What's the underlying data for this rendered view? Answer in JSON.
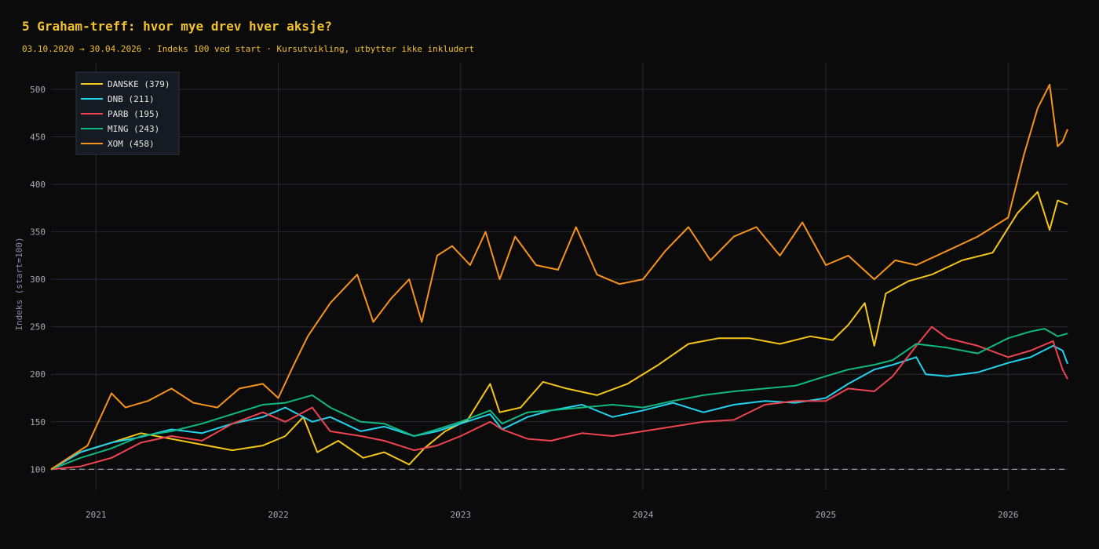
{
  "chart_data": {
    "type": "line",
    "title": "5 Graham-treff: hvor mye drev hver aksje?",
    "subtitle": "03.10.2020 → 30.04.2026 · Indeks 100 ved start · Kursutvikling, utbytter ikke inkludert",
    "ylabel": "Indeks (start=100)",
    "xlabel": "",
    "xlim": [
      "2020-10-03",
      "2026-04-30"
    ],
    "ylim": [
      78,
      528
    ],
    "xticks": [
      "2021",
      "2022",
      "2023",
      "2024",
      "2025",
      "2026"
    ],
    "yticks": [
      100,
      150,
      200,
      250,
      300,
      350,
      400,
      450,
      500
    ],
    "grid": true,
    "legend_position": "top-left",
    "reference_line": 100,
    "series": [
      {
        "name": "DANSKE",
        "legend": "DANSKE  (379)",
        "color": "#f5c518",
        "x": [
          "2020-10-03",
          "2020-12-01",
          "2021-02-01",
          "2021-04-01",
          "2021-06-01",
          "2021-08-01",
          "2021-10-01",
          "2021-12-01",
          "2022-01-15",
          "2022-02-20",
          "2022-03-20",
          "2022-05-01",
          "2022-06-20",
          "2022-08-01",
          "2022-09-20",
          "2022-10-20",
          "2022-12-01",
          "2023-01-15",
          "2023-03-01",
          "2023-03-20",
          "2023-05-01",
          "2023-06-15",
          "2023-08-01",
          "2023-10-01",
          "2023-12-01",
          "2024-02-01",
          "2024-04-01",
          "2024-06-01",
          "2024-08-01",
          "2024-10-01",
          "2024-12-01",
          "2025-01-15",
          "2025-02-15",
          "2025-03-20",
          "2025-04-08",
          "2025-05-01",
          "2025-06-15",
          "2025-08-01",
          "2025-10-01",
          "2025-12-01",
          "2026-01-20",
          "2026-03-01",
          "2026-03-25",
          "2026-04-10",
          "2026-04-30"
        ],
        "values": [
          100,
          118,
          128,
          138,
          132,
          126,
          120,
          125,
          135,
          155,
          118,
          130,
          112,
          118,
          105,
          122,
          140,
          152,
          190,
          160,
          165,
          192,
          185,
          178,
          190,
          210,
          232,
          238,
          238,
          232,
          240,
          236,
          252,
          275,
          230,
          285,
          298,
          305,
          320,
          328,
          370,
          392,
          352,
          383,
          379
        ]
      },
      {
        "name": "DNB",
        "legend": "DNB  (211)",
        "color": "#22d3ee",
        "x": [
          "2020-10-03",
          "2020-12-01",
          "2021-02-01",
          "2021-04-01",
          "2021-06-01",
          "2021-08-01",
          "2021-10-01",
          "2021-12-01",
          "2022-01-15",
          "2022-03-10",
          "2022-04-15",
          "2022-06-15",
          "2022-08-01",
          "2022-09-30",
          "2022-11-15",
          "2023-01-01",
          "2023-03-01",
          "2023-03-25",
          "2023-05-15",
          "2023-07-01",
          "2023-09-01",
          "2023-11-01",
          "2024-01-01",
          "2024-03-01",
          "2024-05-01",
          "2024-07-01",
          "2024-09-01",
          "2024-11-01",
          "2025-01-01",
          "2025-02-15",
          "2025-04-08",
          "2025-05-15",
          "2025-07-01",
          "2025-07-20",
          "2025-09-01",
          "2025-11-01",
          "2026-01-01",
          "2026-02-15",
          "2026-04-01",
          "2026-04-20",
          "2026-04-30"
        ],
        "values": [
          100,
          118,
          128,
          134,
          142,
          138,
          148,
          155,
          165,
          150,
          155,
          140,
          145,
          135,
          140,
          148,
          158,
          142,
          155,
          162,
          168,
          155,
          162,
          170,
          160,
          168,
          172,
          170,
          175,
          190,
          205,
          210,
          218,
          200,
          198,
          202,
          212,
          218,
          230,
          225,
          211
        ]
      },
      {
        "name": "PARB",
        "legend": "PARB  (195)",
        "color": "#ef4450",
        "x": [
          "2020-10-03",
          "2020-12-01",
          "2021-02-01",
          "2021-04-01",
          "2021-06-01",
          "2021-08-01",
          "2021-10-01",
          "2021-12-01",
          "2022-01-15",
          "2022-03-10",
          "2022-04-15",
          "2022-06-15",
          "2022-08-01",
          "2022-09-30",
          "2022-11-15",
          "2023-01-01",
          "2023-03-01",
          "2023-03-25",
          "2023-05-15",
          "2023-07-01",
          "2023-09-01",
          "2023-11-01",
          "2024-01-01",
          "2024-03-01",
          "2024-05-01",
          "2024-07-01",
          "2024-09-01",
          "2024-11-01",
          "2025-01-01",
          "2025-02-15",
          "2025-04-08",
          "2025-05-15",
          "2025-07-01",
          "2025-08-01",
          "2025-09-01",
          "2025-11-01",
          "2026-01-01",
          "2026-02-15",
          "2026-04-01",
          "2026-04-20",
          "2026-04-30"
        ],
        "values": [
          100,
          103,
          112,
          128,
          135,
          130,
          148,
          160,
          150,
          165,
          140,
          135,
          130,
          120,
          125,
          135,
          150,
          142,
          132,
          130,
          138,
          135,
          140,
          145,
          150,
          152,
          168,
          172,
          172,
          185,
          182,
          198,
          230,
          250,
          238,
          230,
          218,
          225,
          235,
          205,
          195
        ]
      },
      {
        "name": "MING",
        "legend": "MING  (243)",
        "color": "#10b981",
        "x": [
          "2020-10-03",
          "2020-12-01",
          "2021-02-01",
          "2021-04-01",
          "2021-06-01",
          "2021-08-01",
          "2021-10-01",
          "2021-12-01",
          "2022-01-15",
          "2022-03-10",
          "2022-04-15",
          "2022-06-15",
          "2022-08-01",
          "2022-09-30",
          "2022-11-15",
          "2023-01-01",
          "2023-03-01",
          "2023-03-25",
          "2023-05-15",
          "2023-07-01",
          "2023-09-01",
          "2023-11-01",
          "2024-01-01",
          "2024-03-01",
          "2024-05-01",
          "2024-07-01",
          "2024-09-01",
          "2024-11-01",
          "2025-01-01",
          "2025-02-15",
          "2025-04-08",
          "2025-05-15",
          "2025-07-01",
          "2025-09-01",
          "2025-11-01",
          "2026-01-01",
          "2026-02-15",
          "2026-03-15",
          "2026-04-10",
          "2026-04-30"
        ],
        "values": [
          100,
          112,
          122,
          135,
          140,
          148,
          158,
          168,
          170,
          178,
          165,
          150,
          148,
          135,
          142,
          150,
          162,
          148,
          160,
          162,
          165,
          168,
          165,
          172,
          178,
          182,
          185,
          188,
          198,
          205,
          210,
          215,
          232,
          228,
          222,
          238,
          245,
          248,
          240,
          243
        ]
      },
      {
        "name": "XOM",
        "legend": "XOM  (458)",
        "color": "#f7931a",
        "x": [
          "2020-10-03",
          "2020-11-01",
          "2020-12-15",
          "2021-02-01",
          "2021-03-01",
          "2021-04-15",
          "2021-06-01",
          "2021-07-15",
          "2021-09-01",
          "2021-10-15",
          "2021-12-01",
          "2022-01-01",
          "2022-02-01",
          "2022-03-01",
          "2022-04-15",
          "2022-06-08",
          "2022-07-10",
          "2022-08-15",
          "2022-09-20",
          "2022-10-15",
          "2022-11-15",
          "2022-12-15",
          "2023-01-20",
          "2023-02-20",
          "2023-03-20",
          "2023-04-20",
          "2023-06-01",
          "2023-07-15",
          "2023-08-20",
          "2023-10-01",
          "2023-11-15",
          "2024-01-01",
          "2024-02-15",
          "2024-04-01",
          "2024-05-15",
          "2024-07-01",
          "2024-08-15",
          "2024-10-01",
          "2024-11-15",
          "2025-01-01",
          "2025-02-15",
          "2025-04-08",
          "2025-05-20",
          "2025-07-01",
          "2025-09-01",
          "2025-11-01",
          "2026-01-01",
          "2026-02-01",
          "2026-03-01",
          "2026-03-25",
          "2026-04-10",
          "2026-04-20",
          "2026-04-30"
        ],
        "values": [
          100,
          110,
          125,
          180,
          165,
          172,
          185,
          170,
          165,
          185,
          190,
          175,
          210,
          240,
          275,
          305,
          255,
          280,
          300,
          255,
          325,
          335,
          315,
          350,
          300,
          345,
          315,
          310,
          355,
          305,
          295,
          300,
          330,
          355,
          320,
          345,
          355,
          325,
          360,
          315,
          325,
          300,
          320,
          315,
          330,
          345,
          365,
          430,
          480,
          505,
          440,
          445,
          458
        ]
      }
    ]
  }
}
